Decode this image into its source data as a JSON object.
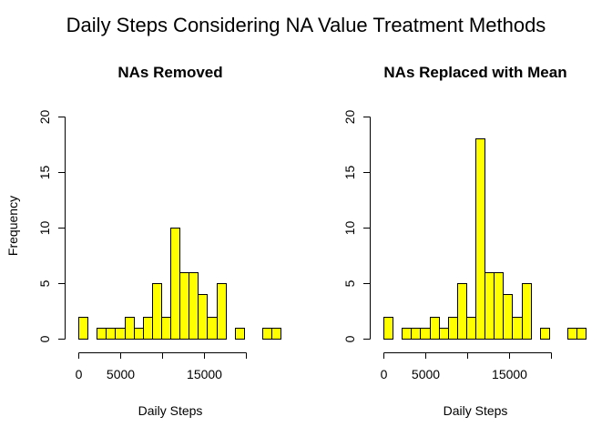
{
  "figure": {
    "title": "Daily Steps Considering NA Value Treatment Methods",
    "shared_ylabel": "Frequency"
  },
  "chart_data": [
    {
      "type": "bar",
      "subtype": "histogram",
      "title": "NAs Removed",
      "xlabel": "Daily Steps",
      "ylabel": "Frequency",
      "bin_width": 1100,
      "bin_start": 0,
      "xlim": [
        0,
        22000
      ],
      "ylim": [
        0,
        20
      ],
      "x_ticks": [
        0,
        5000,
        10000,
        15000,
        20000
      ],
      "x_tick_labels": [
        "0",
        "5000",
        "",
        "15000",
        ""
      ],
      "y_ticks": [
        0,
        5,
        10,
        15,
        20
      ],
      "y_tick_labels": [
        "0",
        "5",
        "10",
        "15",
        "20"
      ],
      "values": [
        2,
        0,
        1,
        1,
        1,
        2,
        1,
        2,
        5,
        2,
        10,
        6,
        6,
        4,
        2,
        5,
        0,
        1,
        0,
        0,
        1,
        1
      ],
      "bar_color": "#ffff00",
      "bar_edge_color": "#000000"
    },
    {
      "type": "bar",
      "subtype": "histogram",
      "title": "NAs Replaced with Mean",
      "xlabel": "Daily Steps",
      "ylabel": "Frequency",
      "bin_width": 1100,
      "bin_start": 0,
      "xlim": [
        0,
        22000
      ],
      "ylim": [
        0,
        20
      ],
      "x_ticks": [
        0,
        5000,
        10000,
        15000,
        20000
      ],
      "x_tick_labels": [
        "0",
        "5000",
        "",
        "15000",
        ""
      ],
      "y_ticks": [
        0,
        5,
        10,
        15,
        20
      ],
      "y_tick_labels": [
        "0",
        "5",
        "10",
        "15",
        "20"
      ],
      "values": [
        2,
        0,
        1,
        1,
        1,
        2,
        1,
        2,
        5,
        2,
        18,
        6,
        6,
        4,
        2,
        5,
        0,
        1,
        0,
        0,
        1,
        1
      ],
      "bar_color": "#ffff00",
      "bar_edge_color": "#000000"
    }
  ]
}
